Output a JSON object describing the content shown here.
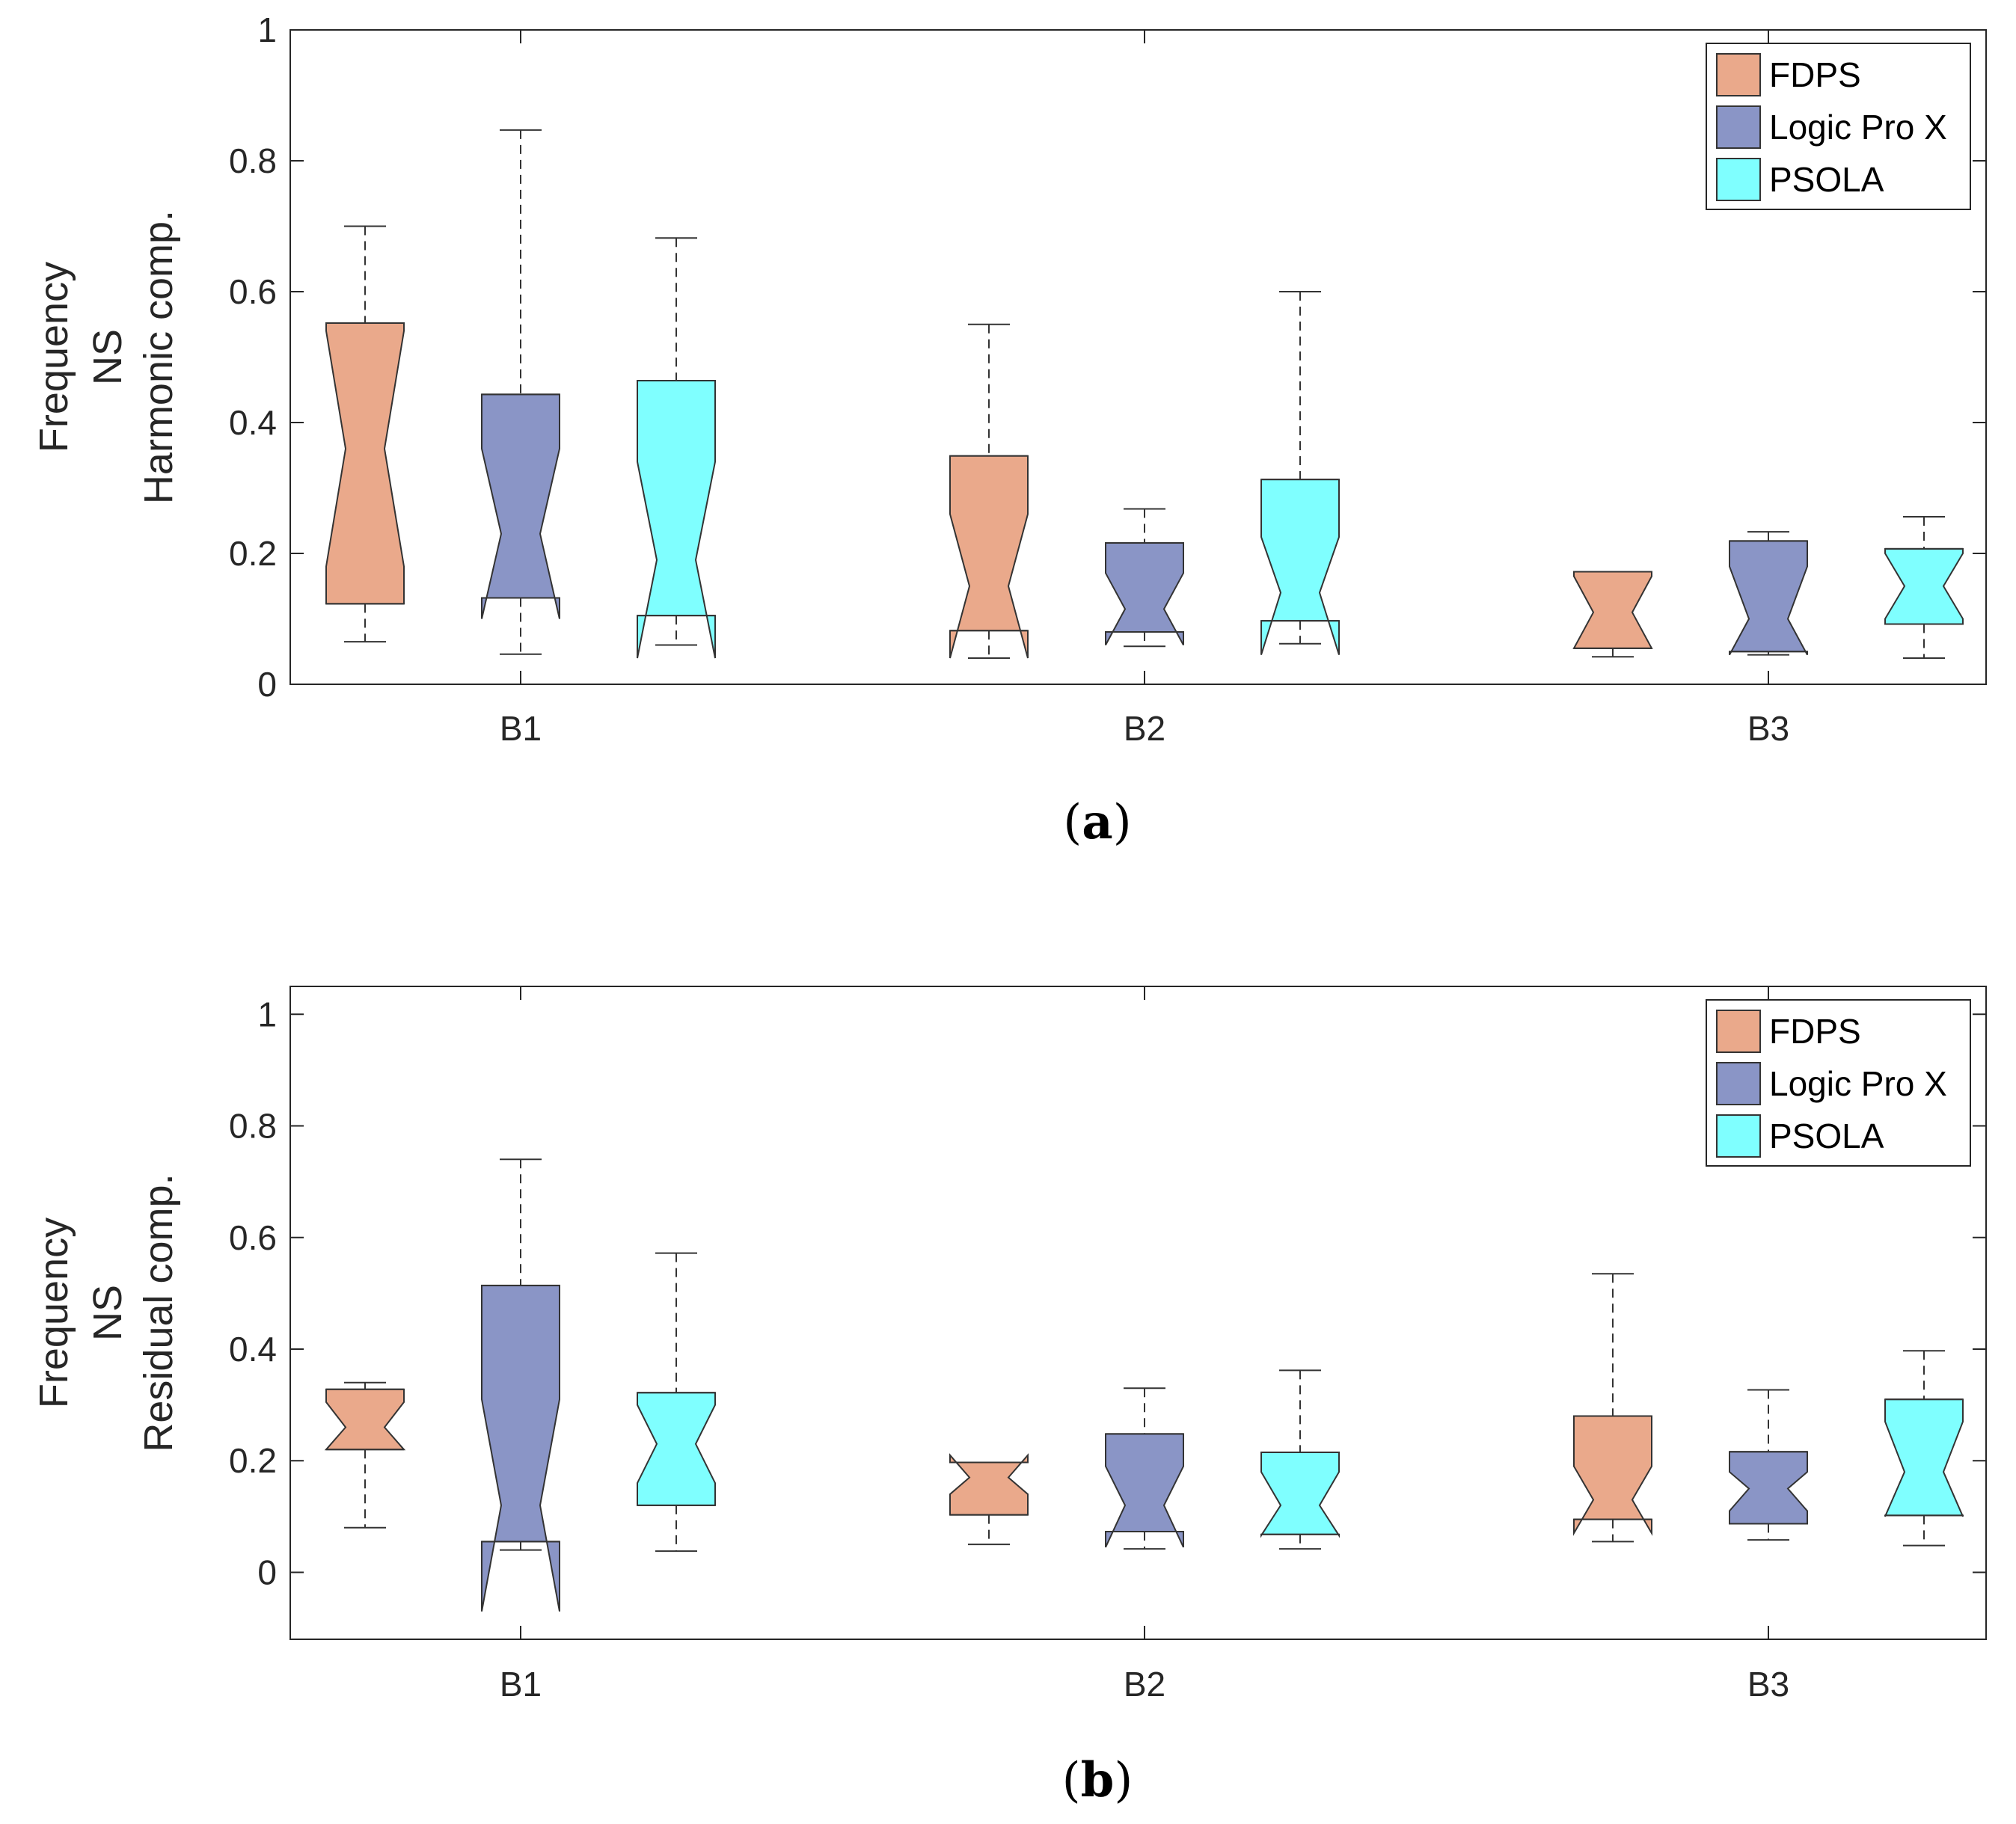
{
  "captions": {
    "a": "a",
    "b": "b"
  },
  "chart_data": [
    {
      "type": "boxplot",
      "panel": "a",
      "ylabel": [
        "Frequency",
        "NS",
        "Harmonic comp."
      ],
      "categories": [
        "B1",
        "B2",
        "B3"
      ],
      "ylim": [
        0,
        1
      ],
      "yticks": [
        "0",
        "0.2",
        "0.4",
        "0.6",
        "0.8",
        "1"
      ],
      "notched": true,
      "legend": {
        "position": "top-right",
        "entries": [
          "FDPS",
          "Logic Pro X",
          "PSOLA"
        ]
      },
      "series": [
        {
          "name": "FDPS",
          "color": "#EAA98B",
          "boxes": [
            {
              "category": "B1",
              "whisker_low": 0.065,
              "q1": 0.123,
              "median": 0.36,
              "q3": 0.552,
              "whisker_high": 0.7,
              "notch_low": 0.18,
              "notch_high": 0.54
            },
            {
              "category": "B2",
              "whisker_low": 0.04,
              "q1": 0.082,
              "median": 0.15,
              "q3": 0.349,
              "whisker_high": 0.55,
              "notch_low": 0.04,
              "notch_high": 0.26
            },
            {
              "category": "B3",
              "whisker_low": 0.042,
              "q1": 0.055,
              "median": 0.11,
              "q3": 0.172,
              "whisker_high": 0.172,
              "notch_low": 0.055,
              "notch_high": 0.165
            }
          ]
        },
        {
          "name": "Logic Pro X",
          "color": "#8A95C6",
          "boxes": [
            {
              "category": "B1",
              "whisker_low": 0.046,
              "q1": 0.132,
              "median": 0.23,
              "q3": 0.443,
              "whisker_high": 0.847,
              "notch_low": 0.1,
              "notch_high": 0.36
            },
            {
              "category": "B2",
              "whisker_low": 0.058,
              "q1": 0.08,
              "median": 0.115,
              "q3": 0.216,
              "whisker_high": 0.268,
              "notch_low": 0.06,
              "notch_high": 0.17
            },
            {
              "category": "B3",
              "whisker_low": 0.045,
              "q1": 0.05,
              "median": 0.1,
              "q3": 0.219,
              "whisker_high": 0.233,
              "notch_low": 0.045,
              "notch_high": 0.18
            }
          ]
        },
        {
          "name": "PSOLA",
          "color": "#7FFFFF",
          "boxes": [
            {
              "category": "B1",
              "whisker_low": 0.06,
              "q1": 0.105,
              "median": 0.19,
              "q3": 0.464,
              "whisker_high": 0.682,
              "notch_low": 0.04,
              "notch_high": 0.34
            },
            {
              "category": "B2",
              "whisker_low": 0.062,
              "q1": 0.097,
              "median": 0.14,
              "q3": 0.313,
              "whisker_high": 0.6,
              "notch_low": 0.045,
              "notch_high": 0.225
            },
            {
              "category": "B3",
              "whisker_low": 0.04,
              "q1": 0.092,
              "median": 0.15,
              "q3": 0.207,
              "whisker_high": 0.256,
              "notch_low": 0.1,
              "notch_high": 0.2
            }
          ]
        }
      ]
    },
    {
      "type": "boxplot",
      "panel": "b",
      "ylabel": [
        "Frequency",
        "NS",
        "Residual comp."
      ],
      "categories": [
        "B1",
        "B2",
        "B3"
      ],
      "ylim": [
        -0.12,
        1.05
      ],
      "yticks": [
        "0",
        "0.2",
        "0.4",
        "0.6",
        "0.8",
        "1"
      ],
      "notched": true,
      "legend": {
        "position": "top-right",
        "entries": [
          "FDPS",
          "Logic Pro X",
          "PSOLA"
        ]
      },
      "series": [
        {
          "name": "FDPS",
          "color": "#EAA98B",
          "boxes": [
            {
              "category": "B1",
              "whisker_low": 0.08,
              "q1": 0.22,
              "median": 0.26,
              "q3": 0.328,
              "whisker_high": 0.34,
              "notch_low": 0.22,
              "notch_high": 0.305
            },
            {
              "category": "B2",
              "whisker_low": 0.05,
              "q1": 0.103,
              "median": 0.17,
              "q3": 0.197,
              "whisker_high": 0.197,
              "notch_low": 0.14,
              "notch_high": 0.21
            },
            {
              "category": "B3",
              "whisker_low": 0.055,
              "q1": 0.095,
              "median": 0.13,
              "q3": 0.28,
              "whisker_high": 0.535,
              "notch_low": 0.07,
              "notch_high": 0.19
            }
          ]
        },
        {
          "name": "Logic Pro X",
          "color": "#8A95C6",
          "boxes": [
            {
              "category": "B1",
              "whisker_low": 0.04,
              "q1": 0.055,
              "median": 0.12,
              "q3": 0.514,
              "whisker_high": 0.74,
              "notch_low": -0.07,
              "notch_high": 0.31
            },
            {
              "category": "B2",
              "whisker_low": 0.042,
              "q1": 0.073,
              "median": 0.12,
              "q3": 0.248,
              "whisker_high": 0.33,
              "notch_low": 0.045,
              "notch_high": 0.19
            },
            {
              "category": "B3",
              "whisker_low": 0.058,
              "q1": 0.087,
              "median": 0.15,
              "q3": 0.216,
              "whisker_high": 0.327,
              "notch_low": 0.11,
              "notch_high": 0.18
            }
          ]
        },
        {
          "name": "PSOLA",
          "color": "#7FFFFF",
          "boxes": [
            {
              "category": "B1",
              "whisker_low": 0.038,
              "q1": 0.12,
              "median": 0.23,
              "q3": 0.322,
              "whisker_high": 0.572,
              "notch_low": 0.16,
              "notch_high": 0.3
            },
            {
              "category": "B2",
              "whisker_low": 0.042,
              "q1": 0.068,
              "median": 0.12,
              "q3": 0.215,
              "whisker_high": 0.362,
              "notch_low": 0.066,
              "notch_high": 0.18
            },
            {
              "category": "B3",
              "whisker_low": 0.048,
              "q1": 0.102,
              "median": 0.18,
              "q3": 0.31,
              "whisker_high": 0.397,
              "notch_low": 0.1,
              "notch_high": 0.27
            }
          ]
        }
      ]
    }
  ]
}
